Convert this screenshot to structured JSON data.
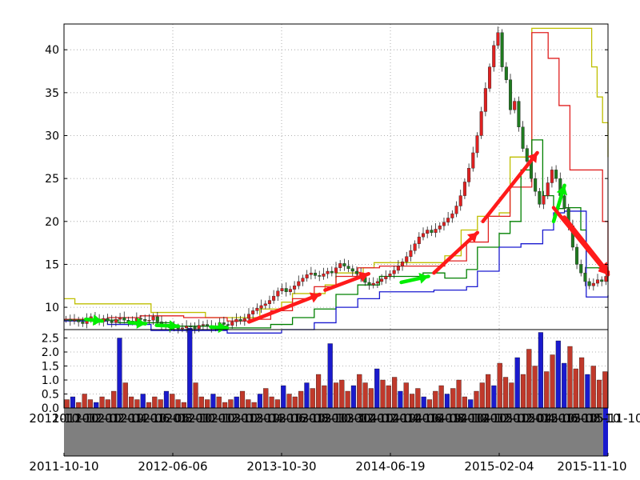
{
  "chart_data": [
    {
      "type": "candlestick",
      "panel": "price",
      "x_start": "2011-10-10",
      "x_end": "2015-11-10",
      "ylim": [
        7.4,
        43.0
      ],
      "yticks": [
        10,
        15,
        20,
        25,
        30,
        35,
        40
      ],
      "grid": true,
      "close": [
        8.6,
        8.4,
        8.5,
        8.3,
        8.1,
        8.6,
        8.9,
        8.5,
        8.3,
        8.7,
        8.4,
        8.2,
        8.6,
        8.8,
        8.5,
        8.3,
        8.4,
        8.7,
        8.6,
        8.4,
        8.5,
        8.9,
        8.3,
        8.0,
        7.8,
        7.6,
        7.7,
        7.5,
        7.6,
        7.8,
        7.7,
        7.5,
        7.9,
        8.0,
        7.8,
        7.6,
        7.8,
        8.2,
        8.0,
        7.9,
        8.3,
        8.6,
        8.4,
        8.7,
        9.2,
        9.6,
        9.9,
        10.2,
        10.4,
        10.8,
        11.3,
        11.9,
        12.2,
        11.8,
        12.1,
        12.5,
        13.0,
        13.4,
        13.8,
        14.0,
        13.7,
        13.6,
        13.9,
        14.2,
        14.0,
        14.6,
        15.1,
        14.8,
        14.5,
        14.2,
        13.9,
        13.5,
        12.9,
        12.6,
        12.8,
        13.0,
        13.3,
        13.6,
        13.9,
        14.3,
        14.8,
        15.3,
        15.9,
        16.6,
        17.4,
        18.2,
        18.6,
        19.0,
        18.7,
        19.1,
        19.5,
        19.9,
        20.4,
        20.9,
        21.8,
        23.0,
        24.6,
        26.2,
        28.0,
        30.0,
        32.8,
        35.5,
        38.0,
        40.5,
        42.0,
        38.0,
        36.5,
        33.0,
        34.0,
        31.0,
        28.5,
        27.0,
        25.0,
        23.5,
        22.0,
        23.0,
        24.5,
        26.0,
        25.0,
        23.0,
        21.5,
        19.5,
        17.0,
        15.0,
        14.0,
        13.0,
        12.5,
        12.8,
        13.2,
        13.0,
        13.6
      ]
    },
    {
      "type": "line",
      "panel": "price",
      "series": [
        {
          "color": "#bfbf00",
          "values": [
            [
              0,
              11.0
            ],
            [
              0.02,
              10.4
            ],
            [
              0.14,
              10.4
            ],
            [
              0.16,
              9.4
            ],
            [
              0.25,
              9.4
            ],
            [
              0.26,
              8.8
            ],
            [
              0.34,
              8.8
            ],
            [
              0.36,
              9.8
            ],
            [
              0.4,
              10.6
            ],
            [
              0.42,
              11.6
            ],
            [
              0.48,
              12.6
            ],
            [
              0.5,
              14.0
            ],
            [
              0.55,
              14.6
            ],
            [
              0.57,
              15.2
            ],
            [
              0.68,
              15.2
            ],
            [
              0.7,
              16.0
            ],
            [
              0.73,
              19.0
            ],
            [
              0.76,
              20.6
            ],
            [
              0.8,
              21.0
            ],
            [
              0.82,
              27.5
            ],
            [
              0.86,
              42.5
            ],
            [
              0.96,
              42.5
            ],
            [
              0.97,
              38.0
            ],
            [
              0.98,
              34.5
            ],
            [
              0.99,
              31.5
            ],
            [
              1.0,
              27.5
            ]
          ]
        },
        {
          "color": "#e02020",
          "values": [
            [
              0,
              8.6
            ],
            [
              0.08,
              8.8
            ],
            [
              0.14,
              9.0
            ],
            [
              0.22,
              8.8
            ],
            [
              0.3,
              8.4
            ],
            [
              0.34,
              8.6
            ],
            [
              0.38,
              9.6
            ],
            [
              0.42,
              11.0
            ],
            [
              0.46,
              12.4
            ],
            [
              0.5,
              13.6
            ],
            [
              0.54,
              14.6
            ],
            [
              0.58,
              14.8
            ],
            [
              0.66,
              14.8
            ],
            [
              0.7,
              15.4
            ],
            [
              0.74,
              17.6
            ],
            [
              0.78,
              20.6
            ],
            [
              0.82,
              24.0
            ],
            [
              0.86,
              42.0
            ],
            [
              0.89,
              39.0
            ],
            [
              0.91,
              33.5
            ],
            [
              0.93,
              26.0
            ],
            [
              0.97,
              26.0
            ],
            [
              0.99,
              20.0
            ],
            [
              1.0,
              13.5
            ]
          ]
        },
        {
          "color": "#008000",
          "values": [
            [
              0,
              8.5
            ],
            [
              0.1,
              8.2
            ],
            [
              0.2,
              7.8
            ],
            [
              0.3,
              7.6
            ],
            [
              0.38,
              8.0
            ],
            [
              0.42,
              8.8
            ],
            [
              0.46,
              9.8
            ],
            [
              0.5,
              11.5
            ],
            [
              0.54,
              12.6
            ],
            [
              0.58,
              13.6
            ],
            [
              0.62,
              13.6
            ],
            [
              0.66,
              14.0
            ],
            [
              0.7,
              13.4
            ],
            [
              0.74,
              14.4
            ],
            [
              0.76,
              17.0
            ],
            [
              0.8,
              18.6
            ],
            [
              0.82,
              20.0
            ],
            [
              0.84,
              26.0
            ],
            [
              0.86,
              29.5
            ],
            [
              0.88,
              23.0
            ],
            [
              0.9,
              21.5
            ],
            [
              0.92,
              21.6
            ],
            [
              0.95,
              19.0
            ],
            [
              0.96,
              14.6
            ],
            [
              1.0,
              13.0
            ]
          ]
        },
        {
          "color": "#1a1ad0",
          "values": [
            [
              0,
              8.4
            ],
            [
              0.08,
              8.0
            ],
            [
              0.16,
              7.3
            ],
            [
              0.3,
              7.0
            ],
            [
              0.36,
              7.0
            ],
            [
              0.4,
              7.4
            ],
            [
              0.46,
              8.2
            ],
            [
              0.5,
              10.0
            ],
            [
              0.54,
              11.0
            ],
            [
              0.58,
              11.8
            ],
            [
              0.64,
              11.8
            ],
            [
              0.68,
              12.0
            ],
            [
              0.72,
              12.0
            ],
            [
              0.74,
              12.4
            ],
            [
              0.76,
              14.2
            ],
            [
              0.8,
              17.0
            ],
            [
              0.84,
              17.4
            ],
            [
              0.88,
              19.0
            ],
            [
              0.9,
              21.0
            ],
            [
              0.92,
              21.2
            ],
            [
              0.96,
              11.2
            ],
            [
              1.0,
              11.4
            ]
          ]
        }
      ],
      "buy_arrows": [
        [
          0.04,
          8.6,
          0.07,
          8.4
        ],
        [
          0.12,
          8.2,
          0.15,
          8.1
        ],
        [
          0.17,
          7.9,
          0.21,
          7.8
        ],
        [
          0.27,
          7.7,
          0.3,
          7.6
        ],
        [
          0.62,
          12.9,
          0.67,
          13.6
        ],
        [
          0.9,
          20.0,
          0.92,
          24.2
        ]
      ],
      "sell_arrows": [
        [
          0.34,
          8.3,
          0.47,
          11.5
        ],
        [
          0.48,
          12.0,
          0.56,
          13.9
        ],
        [
          0.68,
          14.0,
          0.76,
          18.7
        ],
        [
          0.77,
          20.0,
          0.87,
          28.0
        ],
        [
          0.9,
          21.6,
          1.0,
          13.8
        ],
        [
          0.91,
          20.8,
          1.0,
          13.9
        ],
        [
          0.92,
          20.5,
          1.0,
          14.1
        ]
      ]
    },
    {
      "type": "bar",
      "panel": "volume",
      "ylim": [
        0,
        2.8
      ],
      "yticks": [
        0.0,
        0.5,
        1.0,
        1.5,
        2.0,
        2.5
      ],
      "ytick_labels": [
        "0.0",
        "0.5",
        "1.0",
        "1.5",
        "2.0",
        "2.5"
      ],
      "volumes": [
        0.3,
        0.4,
        0.2,
        0.5,
        0.3,
        0.2,
        0.4,
        0.3,
        0.6,
        2.5,
        0.9,
        0.4,
        0.3,
        0.5,
        0.2,
        0.4,
        0.3,
        0.6,
        0.5,
        0.3,
        0.2,
        2.85,
        0.9,
        0.4,
        0.3,
        0.5,
        0.4,
        0.2,
        0.3,
        0.4,
        0.6,
        0.3,
        0.2,
        0.5,
        0.7,
        0.4,
        0.3,
        0.8,
        0.5,
        0.4,
        0.6,
        0.9,
        0.7,
        1.2,
        0.8,
        2.3,
        0.9,
        1.0,
        0.6,
        0.8,
        1.2,
        0.9,
        0.7,
        1.4,
        1.0,
        0.8,
        1.1,
        0.6,
        0.9,
        0.5,
        0.7,
        0.4,
        0.3,
        0.6,
        0.8,
        0.5,
        0.7,
        1.0,
        0.4,
        0.3,
        0.6,
        0.9,
        1.2,
        0.8,
        1.6,
        1.1,
        0.9,
        1.8,
        1.2,
        2.1,
        1.5,
        2.7,
        1.3,
        1.9,
        2.4,
        1.6,
        2.2,
        1.4,
        1.8,
        1.2,
        1.5,
        1.0,
        1.3
      ],
      "xtick_labels": [
        "2011-10-10",
        "2012-06-06",
        "2013-10-30",
        "2014-06-19",
        "2015-02-04",
        "2015-11-10"
      ],
      "xtick_labels_dense": [
        "2011-10-10",
        "2011-12-10",
        "2012-02-10",
        "2012-04-10",
        "2012-06-06",
        "2012-08-10",
        "2012-10-10",
        "2012-12-10",
        "2013-02-10",
        "2013-04-10",
        "2013-06-10",
        "2013-08-10",
        "2013-10-30",
        "2013-12-10",
        "2014-02-10",
        "2014-04-10",
        "2014-06-19",
        "2014-08-10",
        "2014-10-10",
        "2014-12-10",
        "2015-02-04",
        "2015-04-10",
        "2015-06-10",
        "2015-08-10",
        "2015-11-10"
      ]
    }
  ],
  "colors": {
    "up": "#e02020",
    "down": "#1f7a1f",
    "buy_arrow": "#00ee00",
    "sell_arrow": "#ff1a1a",
    "volume_red": "#c0392b",
    "volume_blue": "#1a1acd",
    "range_fill": "#7f7f7f"
  }
}
